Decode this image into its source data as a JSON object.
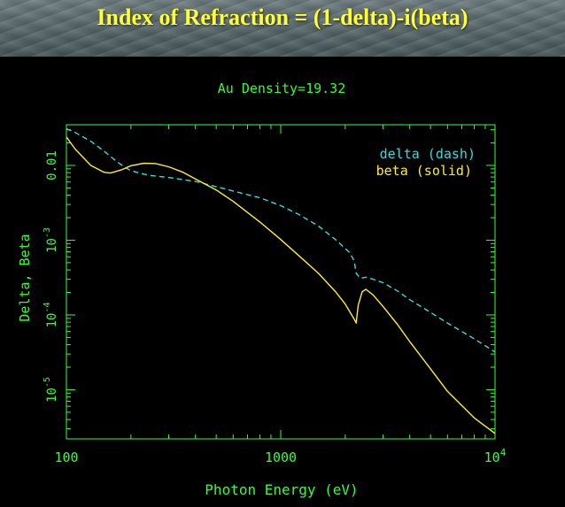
{
  "banner": {
    "title": "Index of Refraction = (1-delta)-i(beta)"
  },
  "chart_data": {
    "type": "line",
    "title": "Au Density=19.32",
    "xlabel": "Photon Energy (eV)",
    "ylabel": "Delta, Beta",
    "x_scale": "log",
    "y_scale": "log",
    "xlim": [
      100,
      10000
    ],
    "ylim": [
      2.2e-06,
      0.035
    ],
    "x_ticks": [
      {
        "value": 100,
        "label": "100"
      },
      {
        "value": 1000,
        "label": "1000"
      },
      {
        "value": 10000,
        "base": "10",
        "exp": "4"
      }
    ],
    "y_ticks": [
      {
        "value": 1e-05,
        "base": "10",
        "exp": "-5"
      },
      {
        "value": 0.0001,
        "base": "10",
        "exp": "-4"
      },
      {
        "value": 0.001,
        "base": "10",
        "exp": "-3"
      },
      {
        "value": 0.01,
        "label": "0.01"
      }
    ],
    "legend": {
      "placement": "top-right"
    },
    "series": [
      {
        "name": "delta (dash)",
        "style": "dash",
        "color": "#33dddd",
        "x": [
          100,
          110,
          130,
          150,
          170,
          190,
          200,
          240,
          300,
          400,
          500,
          600,
          800,
          1000,
          1200,
          1500,
          1800,
          2100,
          2200,
          2250,
          2350,
          2500,
          2700,
          3000,
          3500,
          4000,
          5000,
          6000,
          8000,
          10000
        ],
        "y": [
          0.031,
          0.0275,
          0.021,
          0.0155,
          0.0115,
          0.0092,
          0.0085,
          0.0074,
          0.0069,
          0.0061,
          0.0052,
          0.00455,
          0.0037,
          0.0029,
          0.00225,
          0.00155,
          0.00102,
          0.00068,
          0.00053,
          0.00036,
          0.00031,
          0.00032,
          0.0003,
          0.00027,
          0.00021,
          0.00016,
          0.000108,
          7.8e-05,
          4.8e-05,
          3.2e-05
        ]
      },
      {
        "name": "beta (solid)",
        "style": "solid",
        "color": "#ffee22",
        "x": [
          100,
          110,
          130,
          150,
          160,
          180,
          200,
          230,
          260,
          300,
          350,
          400,
          500,
          600,
          800,
          1000,
          1200,
          1500,
          1800,
          2000,
          2200,
          2250,
          2300,
          2400,
          2500,
          2700,
          3000,
          3500,
          4000,
          5000,
          6000,
          8000,
          10000
        ],
        "y": [
          0.024,
          0.0165,
          0.01,
          0.0081,
          0.0079,
          0.0087,
          0.0099,
          0.0107,
          0.0106,
          0.0096,
          0.0081,
          0.0066,
          0.0047,
          0.0033,
          0.00175,
          0.00102,
          0.00064,
          0.00036,
          0.000205,
          0.00014,
          8.8e-05,
          7.8e-05,
          0.000135,
          0.000205,
          0.00022,
          0.000185,
          0.00013,
          7.5e-05,
          4.4e-05,
          1.9e-05,
          9.5e-06,
          4.2e-06,
          2.6e-06
        ]
      }
    ]
  }
}
